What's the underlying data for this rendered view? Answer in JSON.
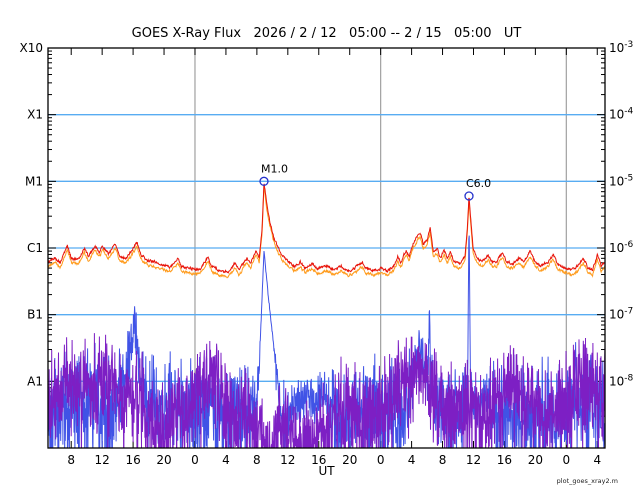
{
  "watermark": "plot_goes_xray2.m",
  "chart_data": {
    "type": "line",
    "title": "GOES X-Ray Flux   2026 / 2 / 12   05:00 -- 2 / 15   05:00   UT",
    "xlabel": "UT",
    "y_scale": "log10 W m^-2",
    "ylim_log10": [
      -9,
      -3
    ],
    "x_axis": {
      "label": "UT",
      "hours_total": 72,
      "tick_hours": [
        3,
        7,
        11,
        15,
        19,
        23,
        27,
        31,
        35,
        39,
        43,
        47,
        51,
        55,
        59,
        63,
        67,
        71
      ],
      "tick_labels": [
        "8",
        "12",
        "16",
        "20",
        "0",
        "4",
        "8",
        "12",
        "16",
        "20",
        "0",
        "4",
        "8",
        "12",
        "16",
        "20",
        "0",
        "4"
      ],
      "day_boundary_hours": [
        19,
        43,
        67
      ]
    },
    "y_axis": {
      "left_labels": [
        {
          "log10": -3,
          "label": "X10"
        },
        {
          "log10": -4,
          "label": "X1"
        },
        {
          "log10": -5,
          "label": "M1"
        },
        {
          "log10": -6,
          "label": "C1"
        },
        {
          "log10": -7,
          "label": "B1"
        },
        {
          "log10": -8,
          "label": "A1"
        }
      ],
      "right_labels": [
        {
          "log10": -3,
          "mantissa": "10",
          "exponent": "-3"
        },
        {
          "log10": -4,
          "mantissa": "10",
          "exponent": "-4"
        },
        {
          "log10": -5,
          "mantissa": "10",
          "exponent": "-5"
        },
        {
          "log10": -6,
          "mantissa": "10",
          "exponent": "-6"
        },
        {
          "log10": -7,
          "mantissa": "10",
          "exponent": "-7"
        },
        {
          "log10": -8,
          "mantissa": "10",
          "exponent": "-8"
        }
      ],
      "gridlines_at": [
        -4,
        -5,
        -6,
        -7,
        -8
      ]
    },
    "colors": {
      "grid_horizontal": "#58acf2",
      "grid_vertical": "#a0a0a0",
      "frame": "#000000",
      "long_primary": "#e8140a",
      "long_secondary": "#ff9c1e",
      "short_primary": "#4053e6",
      "short_secondary": "#7d1fc4",
      "flare_marker": "#2633cc",
      "annotation_text": "#000000"
    },
    "annotations": [
      {
        "label": "M1.0",
        "hour": 27.92,
        "log10_flux": -5.0
      },
      {
        "label": "C6.0",
        "hour": 54.42,
        "log10_flux": -5.22
      }
    ],
    "series": [
      {
        "name": "goes-long-red",
        "kind": "anchored",
        "color": "#e8140a",
        "offset": 0,
        "seed": 5,
        "anchors": [
          [
            0,
            -6.21
          ],
          [
            0.9,
            -6.15
          ],
          [
            1.6,
            -6.22
          ],
          [
            2.5,
            -5.96
          ],
          [
            3.0,
            -6.15
          ],
          [
            3.9,
            -6.18
          ],
          [
            4.7,
            -6.0
          ],
          [
            5.2,
            -6.12
          ],
          [
            6.1,
            -5.97
          ],
          [
            6.6,
            -6.06
          ],
          [
            7.1,
            -5.97
          ],
          [
            7.8,
            -6.09
          ],
          [
            8.7,
            -5.93
          ],
          [
            9.3,
            -6.13
          ],
          [
            10.1,
            -6.15
          ],
          [
            10.7,
            -6.06
          ],
          [
            11.5,
            -5.91
          ],
          [
            12.0,
            -6.1
          ],
          [
            12.9,
            -6.19
          ],
          [
            13.8,
            -6.21
          ],
          [
            14.7,
            -6.25
          ],
          [
            15.8,
            -6.28
          ],
          [
            16.8,
            -6.16
          ],
          [
            17.3,
            -6.28
          ],
          [
            18.4,
            -6.31
          ],
          [
            19.6,
            -6.33
          ],
          [
            20.7,
            -6.13
          ],
          [
            21.2,
            -6.28
          ],
          [
            22.2,
            -6.34
          ],
          [
            23.3,
            -6.37
          ],
          [
            24.2,
            -6.22
          ],
          [
            24.7,
            -6.34
          ],
          [
            25.7,
            -6.15
          ],
          [
            26.2,
            -6.22
          ],
          [
            26.9,
            -6.03
          ],
          [
            27.3,
            -6.15
          ],
          [
            27.66,
            -5.73
          ],
          [
            27.92,
            -5.0
          ],
          [
            28.3,
            -5.36
          ],
          [
            28.7,
            -5.61
          ],
          [
            29.2,
            -5.85
          ],
          [
            30.0,
            -6.06
          ],
          [
            30.9,
            -6.19
          ],
          [
            31.9,
            -6.27
          ],
          [
            32.6,
            -6.21
          ],
          [
            33.2,
            -6.3
          ],
          [
            34.1,
            -6.24
          ],
          [
            34.9,
            -6.31
          ],
          [
            35.9,
            -6.27
          ],
          [
            37.0,
            -6.33
          ],
          [
            37.9,
            -6.27
          ],
          [
            38.8,
            -6.34
          ],
          [
            39.7,
            -6.3
          ],
          [
            40.6,
            -6.21
          ],
          [
            41.1,
            -6.31
          ],
          [
            42.1,
            -6.33
          ],
          [
            43.0,
            -6.3
          ],
          [
            43.9,
            -6.34
          ],
          [
            44.7,
            -6.27
          ],
          [
            45.2,
            -6.13
          ],
          [
            45.6,
            -6.22
          ],
          [
            46.3,
            -6.03
          ],
          [
            46.7,
            -6.12
          ],
          [
            47.2,
            -5.93
          ],
          [
            47.7,
            -5.83
          ],
          [
            48.1,
            -5.76
          ],
          [
            48.5,
            -5.94
          ],
          [
            49.0,
            -5.88
          ],
          [
            49.4,
            -5.7
          ],
          [
            49.8,
            -6.06
          ],
          [
            50.3,
            -6.01
          ],
          [
            50.7,
            -6.15
          ],
          [
            51.2,
            -6.03
          ],
          [
            51.6,
            -6.16
          ],
          [
            52.0,
            -6.05
          ],
          [
            52.5,
            -6.21
          ],
          [
            53.3,
            -6.24
          ],
          [
            53.9,
            -6.12
          ],
          [
            54.2,
            -5.73
          ],
          [
            54.42,
            -5.22
          ],
          [
            54.7,
            -5.65
          ],
          [
            54.95,
            -6.0
          ],
          [
            55.45,
            -6.15
          ],
          [
            56.1,
            -6.21
          ],
          [
            56.9,
            -6.1
          ],
          [
            57.4,
            -6.21
          ],
          [
            58.0,
            -6.21
          ],
          [
            58.7,
            -6.07
          ],
          [
            59.3,
            -6.21
          ],
          [
            60.1,
            -6.24
          ],
          [
            60.9,
            -6.15
          ],
          [
            61.5,
            -6.22
          ],
          [
            62.3,
            -6.05
          ],
          [
            63.0,
            -6.21
          ],
          [
            63.7,
            -6.27
          ],
          [
            64.6,
            -6.21
          ],
          [
            65.3,
            -6.1
          ],
          [
            65.9,
            -6.25
          ],
          [
            66.8,
            -6.3
          ],
          [
            67.7,
            -6.33
          ],
          [
            68.5,
            -6.27
          ],
          [
            69.2,
            -6.15
          ],
          [
            69.8,
            -6.3
          ],
          [
            70.4,
            -6.33
          ],
          [
            71.0,
            -6.1
          ],
          [
            71.5,
            -6.27
          ],
          [
            72,
            -6.21
          ]
        ]
      },
      {
        "name": "goes-long-orange",
        "kind": "anchored",
        "color": "#ff9c1e",
        "offset": -0.07,
        "seed": 9,
        "anchors_ref": "goes-long-red"
      },
      {
        "name": "goes-short-blue",
        "kind": "noisy",
        "color": "#4053e6",
        "seed": 42,
        "envelope": [
          [
            0,
            -8.5,
            0.5
          ],
          [
            2,
            -8.35,
            0.55
          ],
          [
            4,
            -8.3,
            0.6
          ],
          [
            6,
            -8.3,
            0.6
          ],
          [
            8,
            -8.4,
            0.55
          ],
          [
            10,
            -8.0,
            0.45
          ],
          [
            10.8,
            -7.4,
            0.25
          ],
          [
            11.2,
            -7.1,
            0.2
          ],
          [
            11.8,
            -7.7,
            0.3
          ],
          [
            12.5,
            -8.1,
            0.5
          ],
          [
            14,
            -8.3,
            0.5
          ],
          [
            16,
            -8.35,
            0.5
          ],
          [
            18,
            -8.3,
            0.55
          ],
          [
            20,
            -8.35,
            0.55
          ],
          [
            22,
            -8.4,
            0.5
          ],
          [
            24,
            -8.45,
            0.5
          ],
          [
            25.5,
            -8.4,
            0.5
          ],
          [
            26.8,
            -8.3,
            0.4
          ],
          [
            27.3,
            -7.8,
            0.12
          ],
          [
            27.92,
            -6.03,
            0.03
          ],
          [
            28.5,
            -6.75,
            0.04
          ],
          [
            29.3,
            -7.6,
            0.08
          ],
          [
            30.0,
            -8.3,
            0.3
          ],
          [
            30.8,
            -8.8,
            0.5
          ],
          [
            31.6,
            -8.3,
            0.3
          ],
          [
            33,
            -8.2,
            0.25
          ],
          [
            34.5,
            -8.25,
            0.25
          ],
          [
            36,
            -8.3,
            0.35
          ],
          [
            37.5,
            -8.6,
            0.5
          ],
          [
            39,
            -8.45,
            0.5
          ],
          [
            41,
            -8.4,
            0.5
          ],
          [
            43,
            -8.45,
            0.55
          ],
          [
            44.5,
            -8.5,
            0.55
          ],
          [
            46,
            -8.4,
            0.45
          ],
          [
            47.3,
            -7.85,
            0.3
          ],
          [
            48.2,
            -7.5,
            0.22
          ],
          [
            48.9,
            -7.8,
            0.3
          ],
          [
            49.15,
            -7.9,
            0.3
          ],
          [
            49.3,
            -6.78,
            0.04
          ],
          [
            49.45,
            -7.9,
            0.3
          ],
          [
            50.2,
            -8.3,
            0.45
          ],
          [
            51,
            -8.45,
            0.5
          ],
          [
            52.5,
            -8.5,
            0.5
          ],
          [
            53.8,
            -8.4,
            0.4
          ],
          [
            54.25,
            -8.1,
            0.2
          ],
          [
            54.42,
            -5.57,
            0.02
          ],
          [
            54.6,
            -7.9,
            0.1
          ],
          [
            55.0,
            -8.35,
            0.3
          ],
          [
            56.5,
            -8.25,
            0.35
          ],
          [
            58,
            -8.4,
            0.5
          ],
          [
            60,
            -8.45,
            0.55
          ],
          [
            62,
            -8.55,
            0.5
          ],
          [
            63.5,
            -8.5,
            0.5
          ],
          [
            65,
            -8.35,
            0.5
          ],
          [
            66.5,
            -8.4,
            0.5
          ],
          [
            68.05,
            -8.3,
            0.4
          ],
          [
            68.2,
            -7.4,
            0.1
          ],
          [
            68.35,
            -8.3,
            0.4
          ],
          [
            70,
            -8.4,
            0.55
          ],
          [
            71,
            -8.3,
            0.5
          ],
          [
            72,
            -8.4,
            0.5
          ]
        ]
      },
      {
        "name": "goes-short-purple",
        "kind": "noisy",
        "color": "#7d1fc4",
        "seed": 1337,
        "envelope": [
          [
            0,
            -8.25,
            0.5
          ],
          [
            1.5,
            -8.1,
            0.45
          ],
          [
            3,
            -7.95,
            0.45
          ],
          [
            4.5,
            -8.05,
            0.5
          ],
          [
            6,
            -8.0,
            0.5
          ],
          [
            7.5,
            -7.95,
            0.5
          ],
          [
            9,
            -8.1,
            0.5
          ],
          [
            10.5,
            -8.05,
            0.45
          ],
          [
            12,
            -8.35,
            0.5
          ],
          [
            14,
            -8.6,
            0.5
          ],
          [
            16,
            -8.55,
            0.5
          ],
          [
            18,
            -8.45,
            0.5
          ],
          [
            19.5,
            -8.15,
            0.5
          ],
          [
            21,
            -7.95,
            0.45
          ],
          [
            22.5,
            -8.2,
            0.5
          ],
          [
            24,
            -8.5,
            0.5
          ],
          [
            25.5,
            -8.35,
            0.5
          ],
          [
            27,
            -8.7,
            0.45
          ],
          [
            28.5,
            -8.9,
            0.4
          ],
          [
            30,
            -8.7,
            0.5
          ],
          [
            31.5,
            -8.85,
            0.45
          ],
          [
            33,
            -8.9,
            0.45
          ],
          [
            34.5,
            -8.85,
            0.45
          ],
          [
            36,
            -8.75,
            0.5
          ],
          [
            37.5,
            -8.45,
            0.55
          ],
          [
            39,
            -8.35,
            0.5
          ],
          [
            40.5,
            -8.5,
            0.5
          ],
          [
            42,
            -8.55,
            0.5
          ],
          [
            43.5,
            -8.35,
            0.55
          ],
          [
            45,
            -8.0,
            0.5
          ],
          [
            46.5,
            -7.9,
            0.45
          ],
          [
            47.8,
            -7.75,
            0.4
          ],
          [
            48.8,
            -7.9,
            0.45
          ],
          [
            50,
            -8.2,
            0.5
          ],
          [
            51.5,
            -8.45,
            0.5
          ],
          [
            53,
            -8.5,
            0.5
          ],
          [
            54.5,
            -8.35,
            0.5
          ],
          [
            56,
            -8.5,
            0.5
          ],
          [
            57.5,
            -8.35,
            0.5
          ],
          [
            59,
            -8.05,
            0.5
          ],
          [
            60.5,
            -7.95,
            0.45
          ],
          [
            62,
            -8.2,
            0.5
          ],
          [
            63.5,
            -8.5,
            0.5
          ],
          [
            65,
            -8.45,
            0.5
          ],
          [
            66.5,
            -8.3,
            0.5
          ],
          [
            68,
            -8.15,
            0.5
          ],
          [
            69.5,
            -7.95,
            0.45
          ],
          [
            71,
            -8.1,
            0.5
          ],
          [
            72,
            -8.2,
            0.5
          ]
        ]
      }
    ]
  }
}
